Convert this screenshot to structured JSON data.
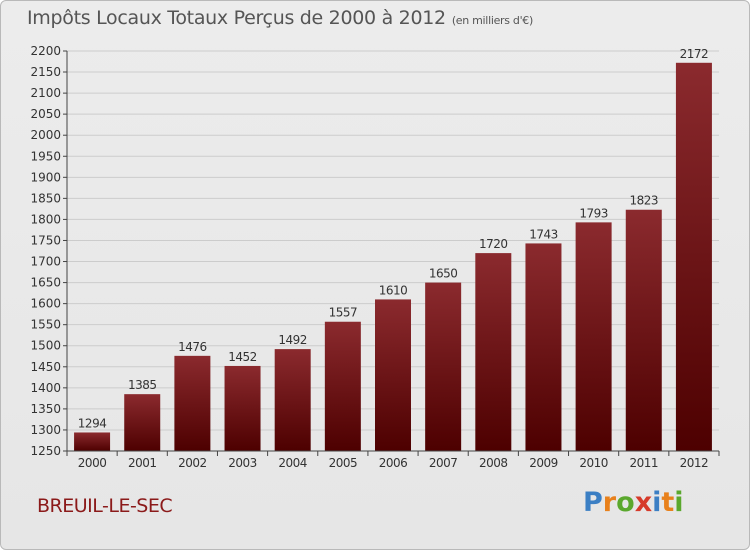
{
  "title": "Impôts Locaux Totaux Perçus de 2000 à 2012",
  "subtitle": "(en milliers d'€)",
  "commune": "BREUIL-LE-SEC",
  "logo": {
    "letters": [
      "P",
      "r",
      "o",
      "x",
      "i",
      "t",
      "i"
    ],
    "colors": [
      "#3b7fc4",
      "#e8811c",
      "#5aa82d",
      "#d63a2a",
      "#3b7fc4",
      "#e8811c",
      "#5aa82d"
    ]
  },
  "colors": {
    "bar_top": "#8b2a2e",
    "bar_bottom": "#4d0000",
    "grid": "#cccccc",
    "axis_text": "#333333"
  },
  "chart_data": {
    "type": "bar",
    "title": "Impôts Locaux Totaux Perçus de 2000 à 2012",
    "xlabel": "",
    "ylabel": "",
    "ylim": [
      1250,
      2200
    ],
    "ytick_step": 50,
    "yticks": [
      "1250",
      "1300",
      "1350",
      "1400",
      "1450",
      "1500",
      "1550",
      "1600",
      "1650",
      "1700",
      "1750",
      "1800",
      "1850",
      "1900",
      "1950",
      "2000",
      "2050",
      "2100",
      "2150",
      "2200"
    ],
    "grid": true,
    "categories": [
      "2000",
      "2001",
      "2002",
      "2003",
      "2004",
      "2005",
      "2006",
      "2007",
      "2008",
      "2009",
      "2010",
      "2011",
      "2012"
    ],
    "values": [
      1294,
      1385,
      1476,
      1452,
      1492,
      1557,
      1610,
      1650,
      1720,
      1743,
      1793,
      1823,
      2172
    ]
  }
}
